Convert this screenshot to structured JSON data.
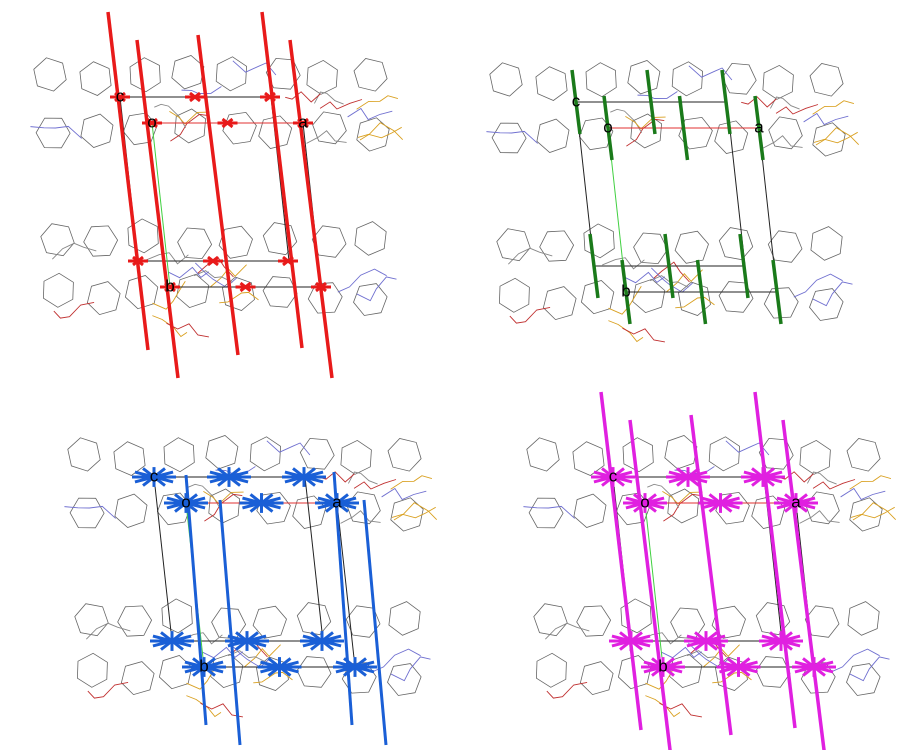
{
  "panels": [
    {
      "labels": [
        "c",
        "o",
        "a",
        "b"
      ]
    },
    {
      "labels": [
        "c",
        "o",
        "a",
        "b"
      ]
    },
    {
      "labels": [
        "c",
        "o",
        "a",
        "b"
      ]
    },
    {
      "labels": [
        "c",
        "o",
        "a",
        "b"
      ]
    }
  ]
}
